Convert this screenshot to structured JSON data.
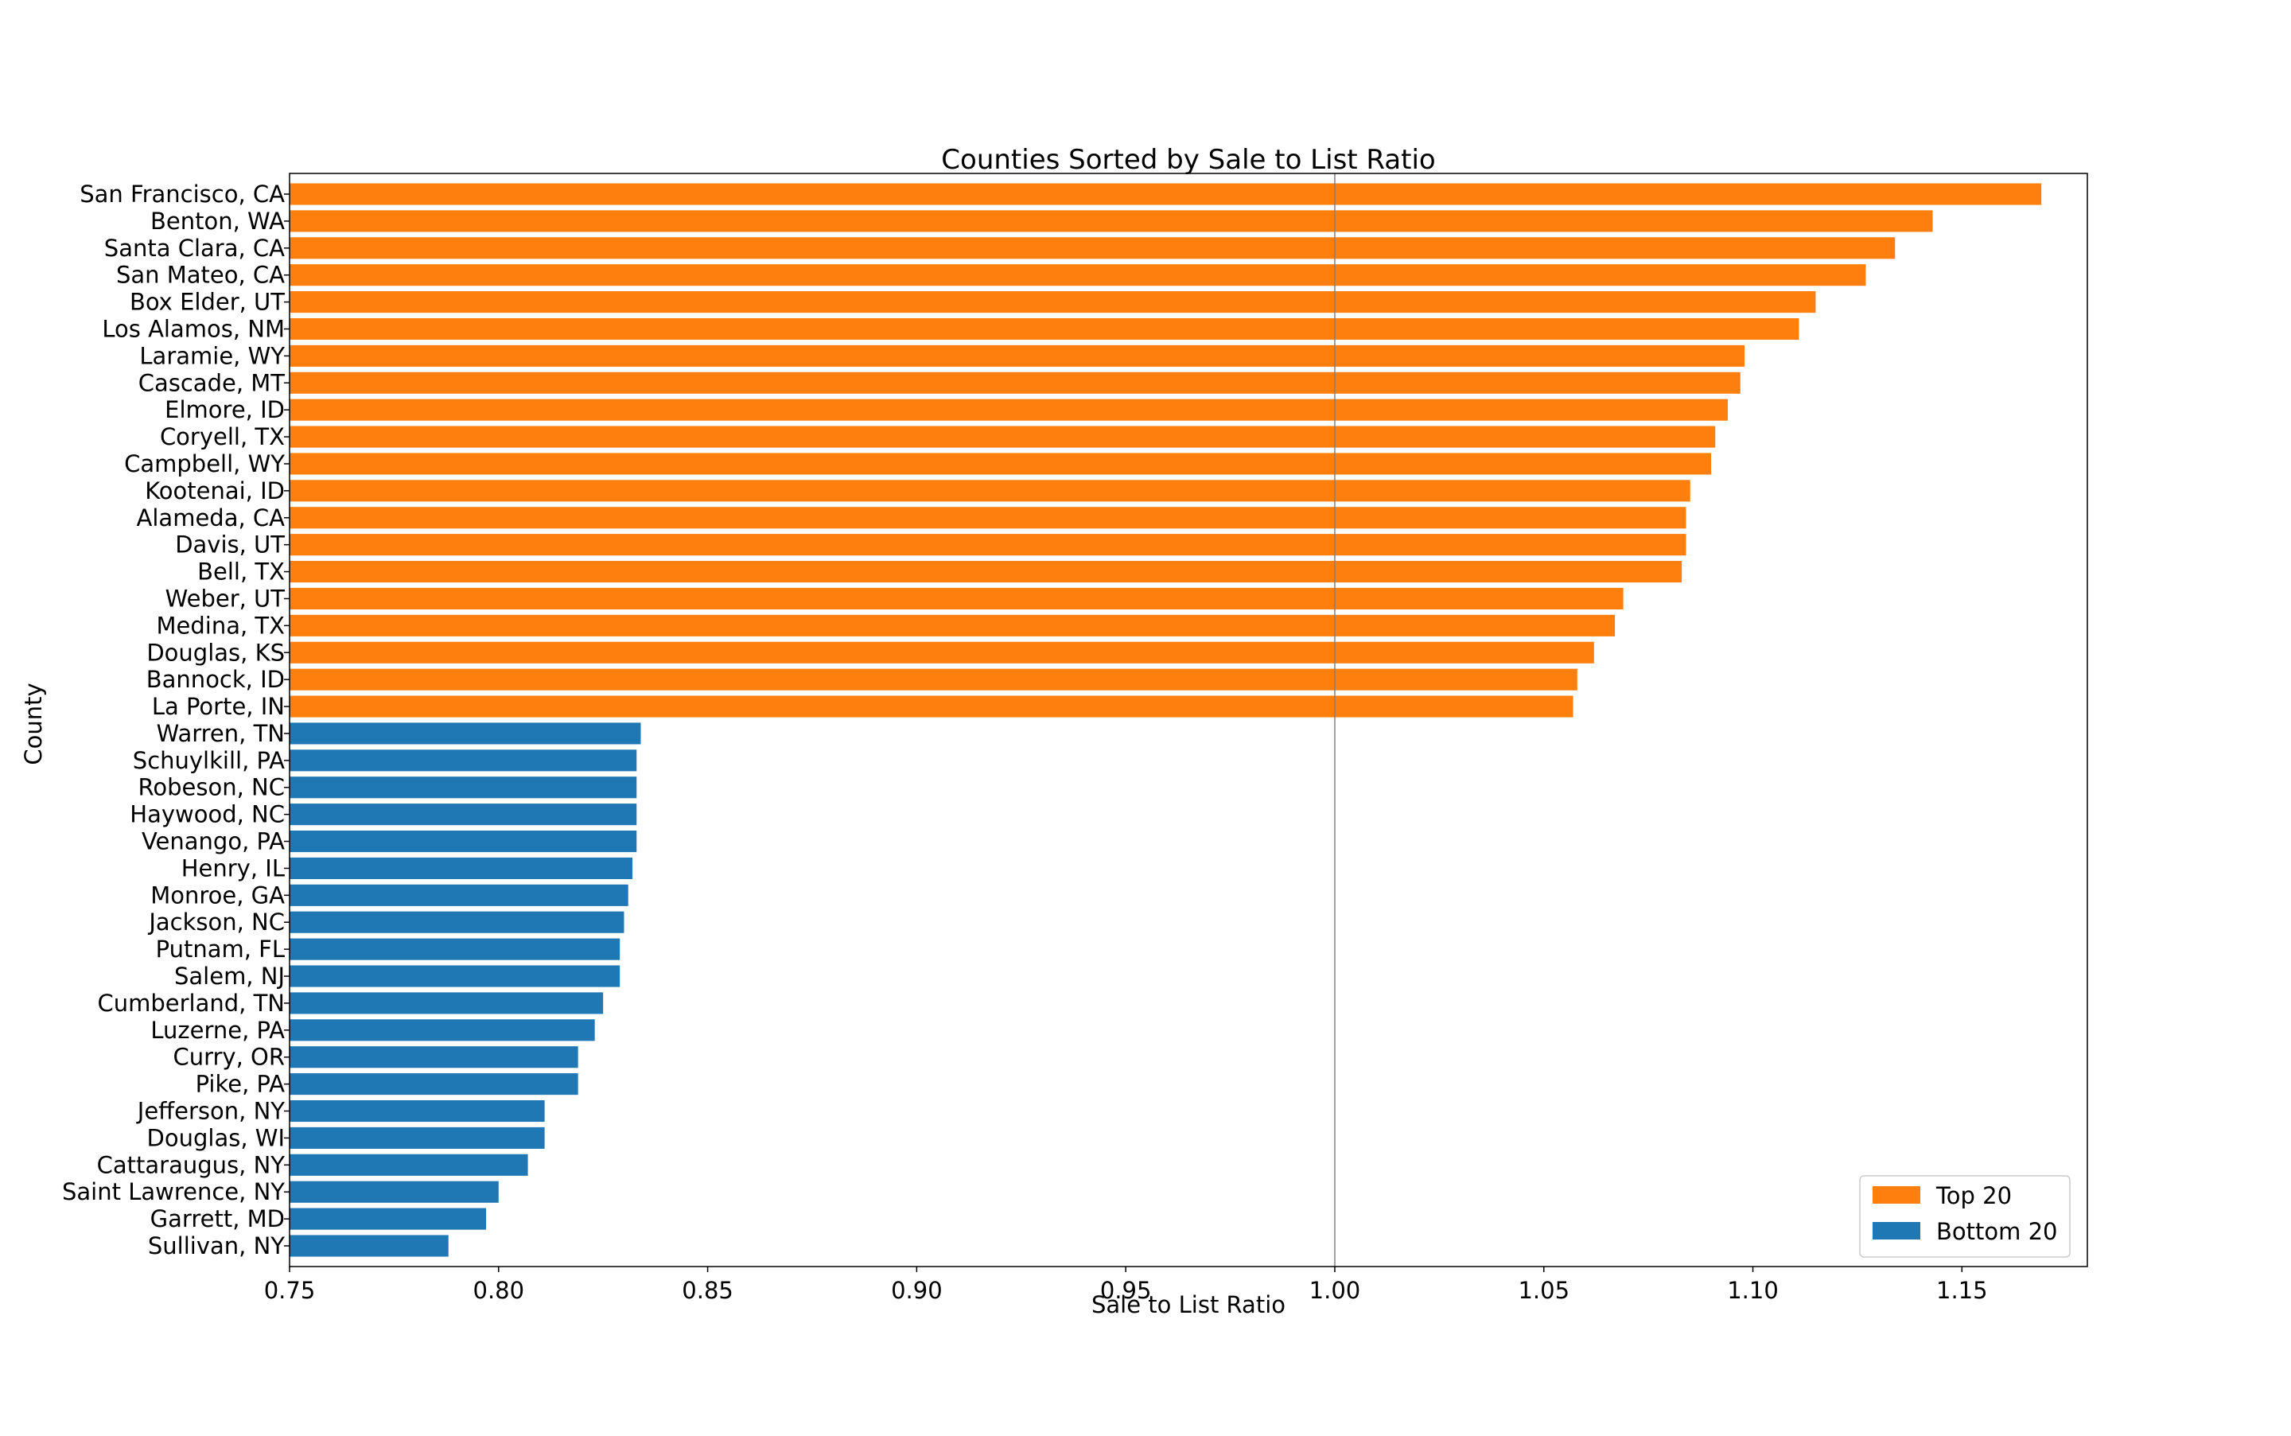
{
  "chart_data": {
    "type": "bar",
    "orientation": "horizontal",
    "title": "Counties Sorted by Sale to List Ratio",
    "xlabel": "Sale to List Ratio",
    "ylabel": "County",
    "xlim": [
      0.75,
      1.18
    ],
    "xticks": [
      "0.75",
      "0.80",
      "0.85",
      "0.90",
      "0.95",
      "1.00",
      "1.05",
      "1.10",
      "1.15"
    ],
    "reference_line": 1.0,
    "legend_position": "lower-right",
    "grid": false,
    "series": [
      {
        "name": "Top 20",
        "color": "#ff7f0e",
        "categories": [
          "San Francisco, CA",
          "Benton, WA",
          "Santa Clara, CA",
          "San Mateo, CA",
          "Box Elder, UT",
          "Los Alamos, NM",
          "Laramie, WY",
          "Cascade, MT",
          "Elmore, ID",
          "Coryell, TX",
          "Campbell, WY",
          "Kootenai, ID",
          "Alameda, CA",
          "Davis, UT",
          "Bell, TX",
          "Weber, UT",
          "Medina, TX",
          "Douglas, KS",
          "Bannock, ID",
          "La Porte, IN"
        ],
        "values": [
          1.169,
          1.143,
          1.134,
          1.127,
          1.115,
          1.111,
          1.098,
          1.097,
          1.094,
          1.091,
          1.09,
          1.085,
          1.084,
          1.084,
          1.083,
          1.069,
          1.067,
          1.062,
          1.058,
          1.057
        ]
      },
      {
        "name": "Bottom 20",
        "color": "#1f77b4",
        "categories": [
          "Warren, TN",
          "Schuylkill, PA",
          "Robeson, NC",
          "Haywood, NC",
          "Venango, PA",
          "Henry, IL",
          "Monroe, GA",
          "Jackson, NC",
          "Putnam, FL",
          "Salem, NJ",
          "Cumberland, TN",
          "Luzerne, PA",
          "Curry, OR",
          "Pike, PA",
          "Jefferson, NY",
          "Douglas, WI",
          "Cattaraugus, NY",
          "Saint Lawrence, NY",
          "Garrett, MD",
          "Sullivan, NY"
        ],
        "values": [
          0.834,
          0.833,
          0.833,
          0.833,
          0.833,
          0.832,
          0.831,
          0.83,
          0.829,
          0.829,
          0.825,
          0.823,
          0.819,
          0.819,
          0.811,
          0.811,
          0.807,
          0.8,
          0.797,
          0.788
        ]
      }
    ]
  }
}
